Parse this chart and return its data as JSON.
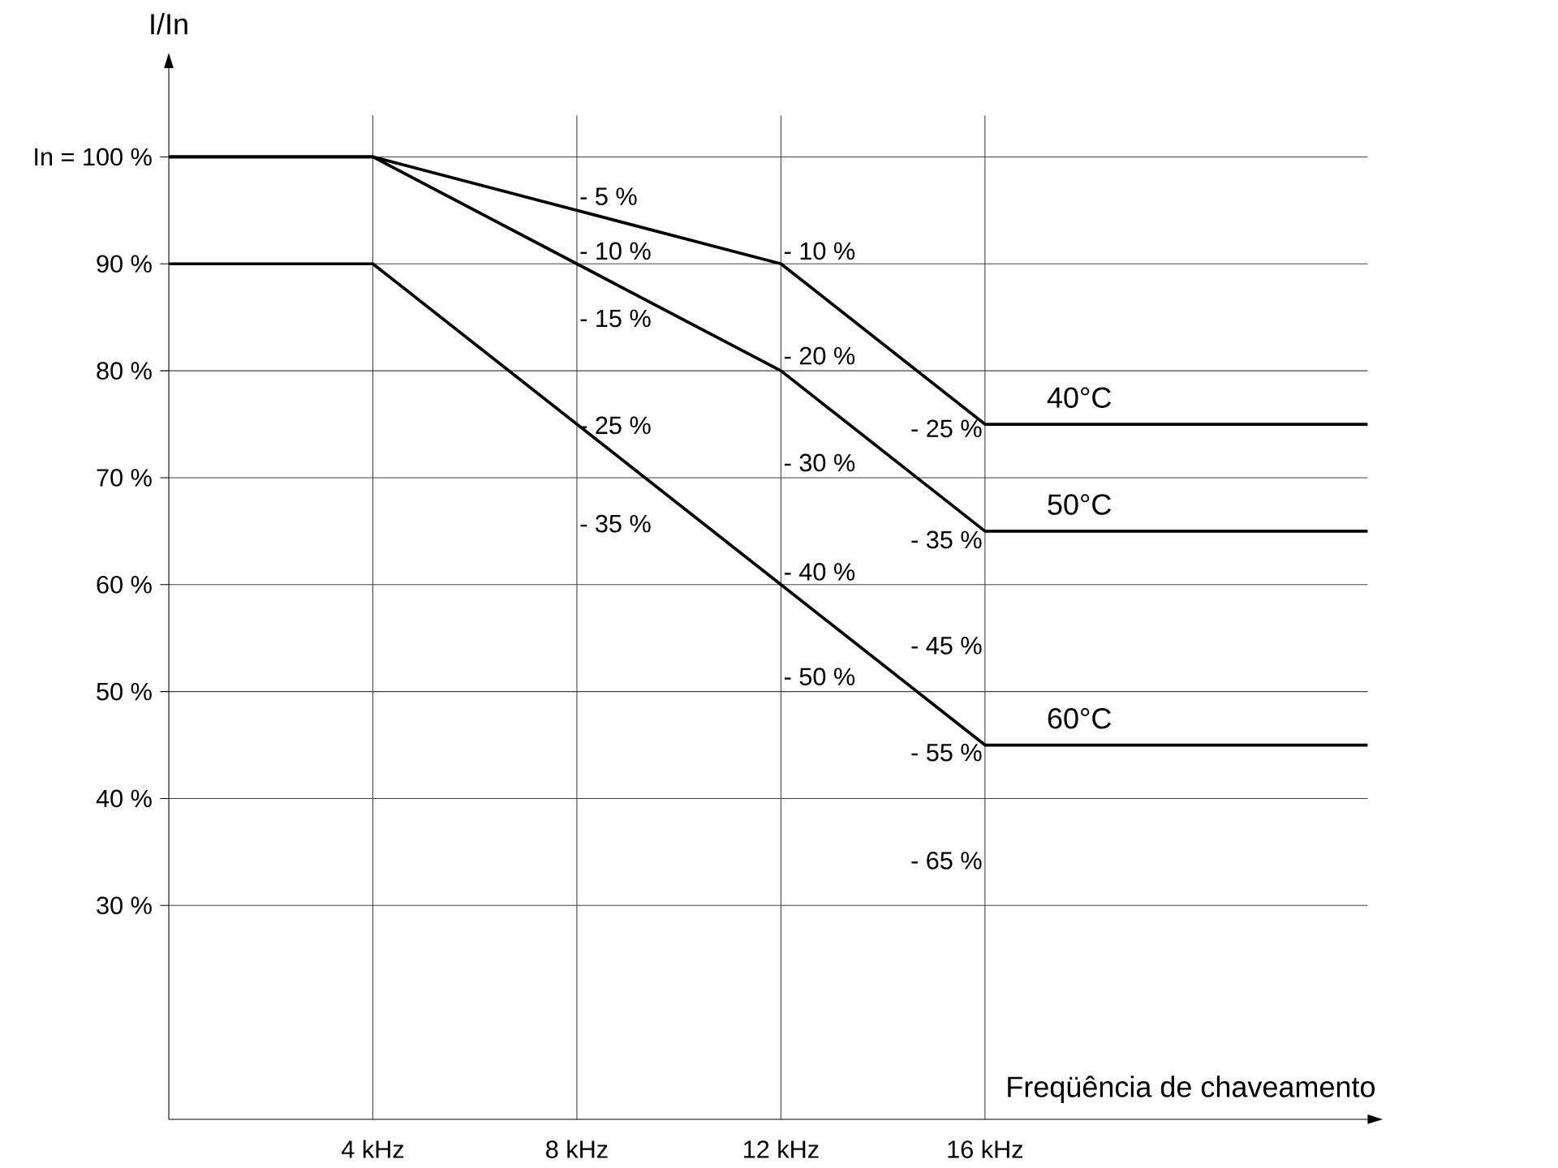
{
  "chart_data": {
    "type": "line",
    "xlabel": "Freqüência de chaveamento",
    "ylabel": "I/In",
    "xlim": [
      0,
      23.5
    ],
    "ylim": [
      10,
      108.3
    ],
    "xticks": [
      {
        "value": 4,
        "label": "4 kHz"
      },
      {
        "value": 8,
        "label": "8 kHz"
      },
      {
        "value": 12,
        "label": "12 kHz"
      },
      {
        "value": 16,
        "label": "16 kHz"
      }
    ],
    "yticks": [
      {
        "value": 30,
        "label": "30 %"
      },
      {
        "value": 40,
        "label": "40 %"
      },
      {
        "value": 50,
        "label": "50 %"
      },
      {
        "value": 60,
        "label": "60 %"
      },
      {
        "value": 70,
        "label": "70 %"
      },
      {
        "value": 80,
        "label": "80 %"
      },
      {
        "value": 90,
        "label": "90 %"
      },
      {
        "value": 100,
        "label": "In = 100 %"
      }
    ],
    "grid": true,
    "marker": "none",
    "line_style": "solid",
    "series": [
      {
        "name": "40°C",
        "color": "#000000",
        "x": [
          0,
          4,
          12,
          16,
          23.5
        ],
        "values": [
          100,
          100,
          90,
          75,
          75
        ]
      },
      {
        "name": "50°C",
        "color": "#000000",
        "x": [
          0,
          4,
          8,
          12,
          16,
          23.5
        ],
        "values": [
          100,
          100,
          90,
          80,
          65,
          65
        ]
      },
      {
        "name": "60°C",
        "color": "#000000",
        "x": [
          0,
          4,
          12,
          16,
          23.5
        ],
        "values": [
          90,
          90,
          60,
          45,
          45
        ]
      }
    ],
    "annotations": [
      "- 5 %",
      "- 10 %",
      "- 15 %",
      "- 25 %",
      "- 35 %",
      "- 10 %",
      "- 20 %",
      "- 30 %",
      "- 40 %",
      "- 50 %",
      "- 25 %",
      "- 35 %",
      "- 45 %",
      "- 55 %",
      "- 65 %"
    ]
  }
}
